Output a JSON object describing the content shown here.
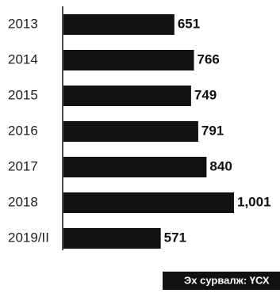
{
  "chart_data": {
    "type": "hbar",
    "categories": [
      "2013",
      "2014",
      "2015",
      "2016",
      "2017",
      "2018",
      "2019/II"
    ],
    "values": [
      651,
      766,
      749,
      791,
      840,
      1001,
      571
    ],
    "value_labels": [
      "651",
      "766",
      "749",
      "791",
      "840",
      "1,001",
      "571"
    ],
    "color": "#111111",
    "source": "Эх сурвалж: ҮСХ"
  }
}
